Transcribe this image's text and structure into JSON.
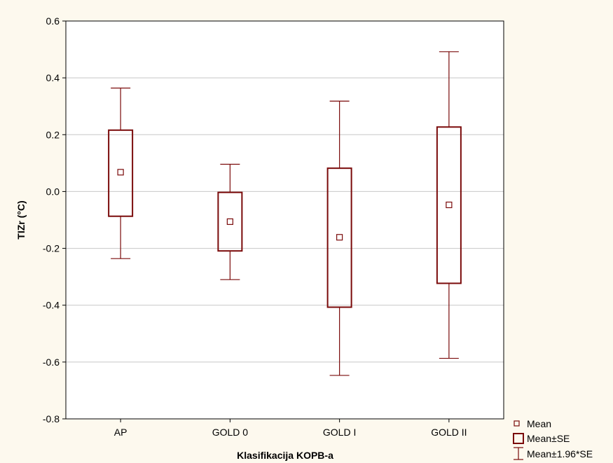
{
  "chart_data": {
    "type": "box",
    "xlabel": "Klasifikacija KOPB-a",
    "ylabel": "TIZr (°C)",
    "ylim": [
      -0.8,
      0.6
    ],
    "yticks": [
      "-0.8",
      "-0.6",
      "-0.4",
      "-0.2",
      "0.0",
      "0.2",
      "0.4",
      "0.6"
    ],
    "ytick_values": [
      -0.8,
      -0.6,
      -0.4,
      -0.2,
      0.0,
      0.2,
      0.4,
      0.6
    ],
    "categories": [
      "AP",
      "GOLD 0",
      "GOLD I",
      "GOLD II"
    ],
    "mean": [
      0.068,
      -0.106,
      -0.161,
      -0.047
    ],
    "se_low": [
      -0.087,
      -0.209,
      -0.407,
      -0.323
    ],
    "se_high": [
      0.216,
      -0.003,
      0.082,
      0.227
    ],
    "ci_low": [
      -0.236,
      -0.31,
      -0.647,
      -0.587
    ],
    "ci_high": [
      0.364,
      0.096,
      0.318,
      0.492
    ],
    "grid": true,
    "legend": [
      "Mean",
      "Mean±SE",
      "Mean±1.96*SE"
    ],
    "legend_position": "bottom-right",
    "colors": {
      "series": "#7a0a0a",
      "background": "#fdf9ee",
      "plot_background": "#ffffff",
      "grid": "#c8c8c8"
    }
  }
}
